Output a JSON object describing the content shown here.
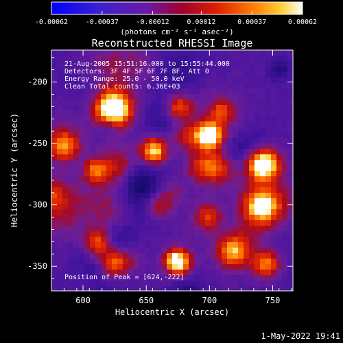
{
  "colorbar": {
    "min": -0.00062,
    "max": 0.00062,
    "tick_labels": [
      "-0.00062",
      "-0.00037",
      "-0.00012",
      "0.00012",
      "0.00037",
      "0.00062"
    ],
    "units_label": "(photons cm⁻² s⁻¹ asec⁻²)"
  },
  "footer": {
    "timestamp": "1-May-2022 19:41"
  },
  "chart_data": {
    "type": "heatmap",
    "title": "Reconstructed RHESSI Image",
    "xlabel": "Heliocentric X (arcsec)",
    "ylabel": "Heliocentric Y (arcsec)",
    "xlim": [
      575,
      766
    ],
    "ylim": [
      -370,
      -174
    ],
    "xticks": [
      600,
      650,
      700,
      750
    ],
    "yticks": [
      -350,
      -300,
      -250,
      -200
    ],
    "annotations": [
      "21-Aug-2005 15:51:16.000 to 15:55:44.000",
      "Detectors: 3F 4F 5F 6F 7F 8F, Att 0",
      "Energy Range: 25.0 - 50.0 keV",
      "Clean    Total counts: 6.36E+03"
    ],
    "peak_label": "Position of Peak = [624,-222]",
    "peak": [
      624,
      -222
    ],
    "colormap": "heat (blue-purple-red-orange-yellow-white)",
    "value_range": [
      -0.00062,
      0.00062
    ]
  }
}
